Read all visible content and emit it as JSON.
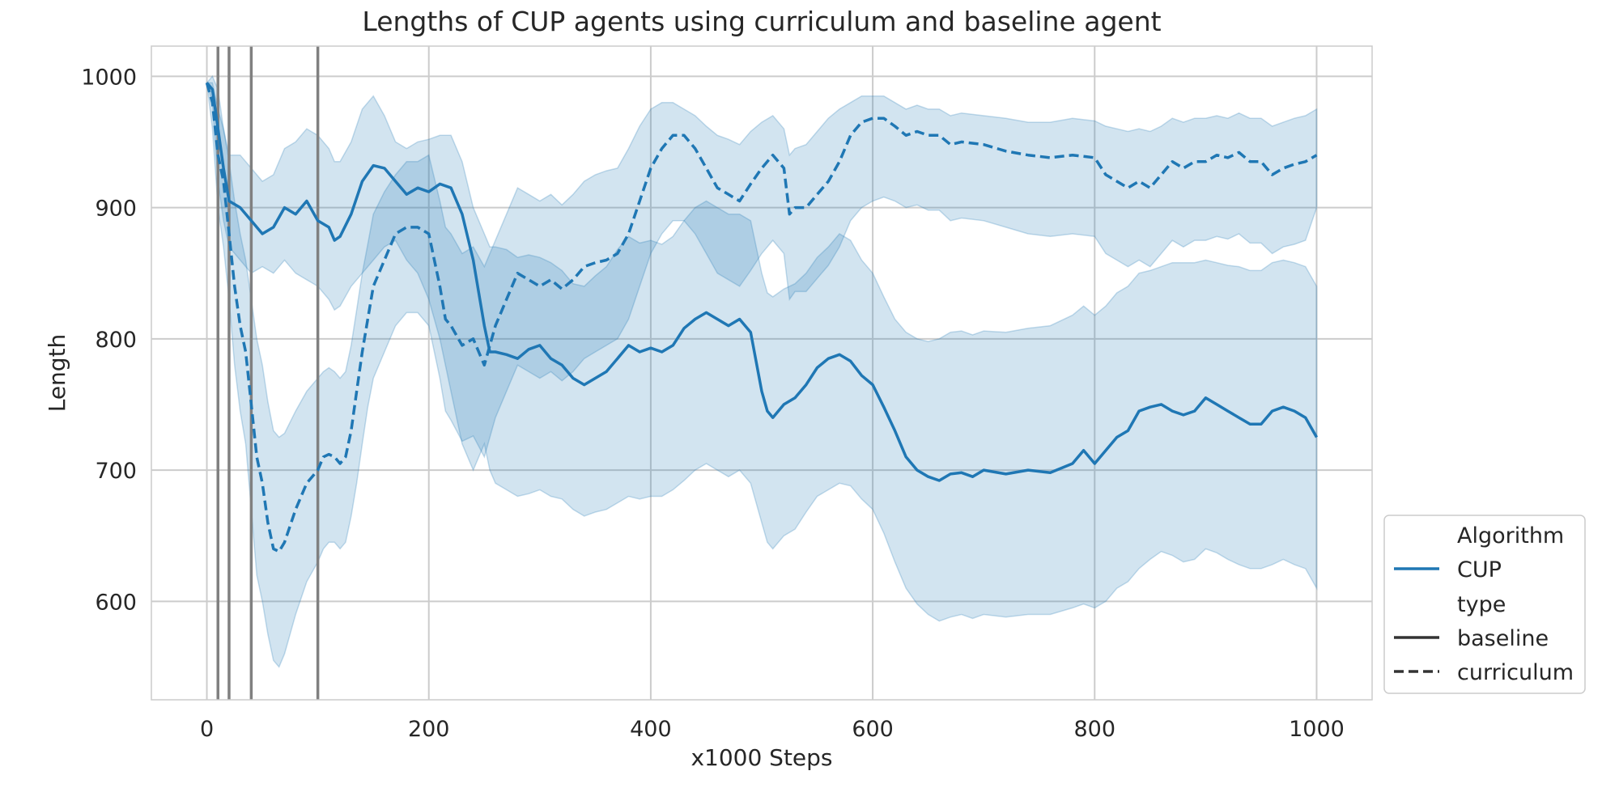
{
  "chart_data": {
    "type": "line",
    "title": "Lengths of CUP agents using curriculum and baseline agent",
    "xlabel": "x1000 Steps",
    "ylabel": "Length",
    "xlim": [
      -50,
      1050
    ],
    "ylim": [
      525,
      1023
    ],
    "x_ticks": [
      0,
      200,
      400,
      600,
      800,
      1000
    ],
    "x_tick_labels": [
      "0",
      "200",
      "400",
      "600",
      "800",
      "1000"
    ],
    "y_ticks": [
      600,
      700,
      800,
      900,
      1000
    ],
    "y_tick_labels": [
      "600",
      "700",
      "800",
      "900",
      "1000"
    ],
    "grid": true,
    "color": "#1f77b4",
    "vertical_markers": [
      10,
      20,
      40,
      100
    ],
    "legend": {
      "placement": "bottom-right",
      "hue_title": "Algorithm",
      "hue_entries": [
        "CUP"
      ],
      "style_title": "type",
      "style_entries": [
        "baseline",
        "curriculum"
      ]
    },
    "series": [
      {
        "name": "baseline",
        "style": "solid",
        "x": [
          0,
          5,
          10,
          15,
          20,
          30,
          40,
          50,
          60,
          70,
          80,
          90,
          100,
          110,
          115,
          120,
          130,
          140,
          150,
          160,
          170,
          180,
          190,
          200,
          210,
          220,
          230,
          240,
          250,
          255,
          260,
          270,
          280,
          290,
          300,
          310,
          320,
          330,
          340,
          350,
          360,
          370,
          380,
          390,
          400,
          410,
          420,
          430,
          440,
          450,
          460,
          470,
          480,
          490,
          500,
          505,
          510,
          520,
          530,
          540,
          550,
          560,
          570,
          580,
          590,
          600,
          610,
          620,
          630,
          640,
          650,
          660,
          670,
          680,
          690,
          700,
          720,
          740,
          760,
          780,
          790,
          800,
          810,
          820,
          830,
          840,
          850,
          860,
          870,
          880,
          890,
          900,
          910,
          920,
          930,
          940,
          950,
          960,
          970,
          980,
          990,
          1000
        ],
        "y": [
          995,
          990,
          960,
          930,
          905,
          900,
          890,
          880,
          885,
          900,
          895,
          905,
          890,
          885,
          875,
          878,
          895,
          920,
          932,
          930,
          920,
          910,
          915,
          912,
          918,
          915,
          895,
          860,
          810,
          790,
          790,
          788,
          785,
          792,
          795,
          785,
          780,
          770,
          765,
          770,
          775,
          785,
          795,
          790,
          793,
          790,
          795,
          808,
          815,
          820,
          815,
          810,
          815,
          805,
          760,
          745,
          740,
          750,
          755,
          765,
          778,
          785,
          788,
          783,
          772,
          765,
          748,
          730,
          710,
          700,
          695,
          692,
          697,
          698,
          695,
          700,
          697,
          700,
          698,
          705,
          715,
          705,
          715,
          725,
          730,
          745,
          748,
          750,
          745,
          742,
          745,
          755,
          750,
          745,
          740,
          735,
          735,
          745,
          748,
          745,
          740,
          725
        ],
        "lower": [
          995,
          980,
          920,
          890,
          870,
          860,
          850,
          855,
          850,
          860,
          850,
          845,
          840,
          830,
          822,
          825,
          840,
          850,
          860,
          870,
          875,
          860,
          850,
          830,
          800,
          760,
          720,
          700,
          720,
          700,
          690,
          685,
          680,
          682,
          685,
          680,
          678,
          670,
          665,
          668,
          670,
          675,
          680,
          678,
          680,
          680,
          685,
          692,
          700,
          705,
          700,
          695,
          700,
          690,
          660,
          645,
          640,
          650,
          655,
          668,
          680,
          685,
          690,
          688,
          678,
          670,
          652,
          630,
          610,
          598,
          590,
          585,
          588,
          590,
          587,
          590,
          588,
          590,
          590,
          595,
          598,
          595,
          600,
          610,
          615,
          625,
          632,
          638,
          635,
          630,
          632,
          640,
          637,
          632,
          628,
          625,
          625,
          628,
          632,
          628,
          625,
          610
        ],
        "upper": [
          995,
          1000,
          990,
          960,
          940,
          940,
          930,
          920,
          925,
          945,
          950,
          960,
          955,
          945,
          935,
          935,
          950,
          975,
          985,
          970,
          950,
          945,
          950,
          952,
          955,
          955,
          935,
          900,
          880,
          870,
          870,
          868,
          862,
          864,
          862,
          858,
          852,
          842,
          840,
          848,
          855,
          868,
          878,
          873,
          875,
          872,
          878,
          890,
          900,
          905,
          900,
          895,
          895,
          890,
          850,
          835,
          832,
          838,
          842,
          850,
          862,
          870,
          880,
          875,
          860,
          850,
          832,
          815,
          805,
          800,
          798,
          800,
          805,
          806,
          803,
          806,
          805,
          808,
          810,
          818,
          825,
          818,
          825,
          835,
          840,
          850,
          852,
          855,
          858,
          858,
          858,
          860,
          858,
          856,
          855,
          852,
          852,
          858,
          860,
          858,
          855,
          840
        ]
      },
      {
        "name": "curriculum",
        "style": "dashed",
        "x": [
          0,
          5,
          10,
          15,
          20,
          25,
          30,
          35,
          40,
          45,
          50,
          55,
          60,
          65,
          70,
          80,
          90,
          100,
          105,
          110,
          115,
          120,
          125,
          130,
          135,
          140,
          145,
          150,
          160,
          170,
          180,
          190,
          200,
          210,
          215,
          220,
          230,
          240,
          250,
          260,
          270,
          280,
          290,
          300,
          310,
          320,
          330,
          340,
          350,
          360,
          370,
          380,
          390,
          400,
          410,
          420,
          430,
          440,
          450,
          460,
          470,
          480,
          490,
          500,
          510,
          520,
          525,
          530,
          540,
          550,
          560,
          570,
          580,
          590,
          600,
          610,
          620,
          630,
          640,
          650,
          660,
          670,
          680,
          700,
          720,
          740,
          760,
          780,
          800,
          810,
          820,
          830,
          840,
          850,
          860,
          870,
          880,
          890,
          900,
          910,
          920,
          930,
          940,
          950,
          960,
          970,
          980,
          990,
          1000
        ],
        "y": [
          995,
          980,
          940,
          920,
          880,
          840,
          810,
          790,
          750,
          710,
          690,
          660,
          640,
          638,
          645,
          670,
          690,
          700,
          710,
          712,
          710,
          705,
          710,
          730,
          760,
          790,
          815,
          840,
          860,
          880,
          885,
          885,
          880,
          840,
          815,
          810,
          795,
          800,
          780,
          810,
          830,
          850,
          845,
          840,
          845,
          838,
          845,
          855,
          858,
          860,
          865,
          880,
          905,
          930,
          945,
          955,
          955,
          945,
          930,
          915,
          910,
          905,
          918,
          930,
          940,
          930,
          895,
          900,
          900,
          910,
          920,
          935,
          955,
          965,
          968,
          968,
          962,
          955,
          958,
          955,
          955,
          948,
          950,
          948,
          943,
          940,
          938,
          940,
          938,
          925,
          920,
          915,
          920,
          915,
          925,
          935,
          930,
          935,
          935,
          940,
          938,
          942,
          935,
          935,
          925,
          930,
          933,
          935,
          940
        ],
        "lower": [
          995,
          960,
          900,
          870,
          830,
          780,
          745,
          720,
          670,
          620,
          600,
          575,
          555,
          550,
          560,
          590,
          615,
          630,
          640,
          645,
          645,
          640,
          645,
          665,
          690,
          720,
          748,
          770,
          790,
          810,
          820,
          820,
          810,
          770,
          745,
          738,
          722,
          726,
          710,
          740,
          760,
          780,
          775,
          770,
          775,
          768,
          775,
          785,
          790,
          795,
          800,
          815,
          840,
          865,
          880,
          890,
          890,
          880,
          865,
          850,
          845,
          840,
          852,
          865,
          875,
          865,
          830,
          836,
          836,
          846,
          856,
          870,
          890,
          900,
          905,
          908,
          905,
          900,
          902,
          898,
          898,
          890,
          892,
          890,
          885,
          880,
          878,
          880,
          878,
          865,
          860,
          855,
          860,
          855,
          865,
          875,
          870,
          875,
          875,
          878,
          876,
          880,
          873,
          873,
          865,
          870,
          872,
          875,
          900
        ],
        "upper": [
          995,
          995,
          975,
          960,
          935,
          905,
          880,
          860,
          830,
          800,
          780,
          752,
          730,
          725,
          728,
          745,
          760,
          770,
          775,
          778,
          775,
          770,
          775,
          795,
          822,
          850,
          872,
          895,
          912,
          925,
          935,
          935,
          940,
          905,
          885,
          880,
          865,
          870,
          855,
          875,
          895,
          915,
          910,
          905,
          910,
          902,
          910,
          920,
          925,
          928,
          930,
          945,
          962,
          975,
          980,
          980,
          975,
          970,
          962,
          955,
          952,
          948,
          958,
          965,
          970,
          960,
          940,
          945,
          948,
          958,
          968,
          975,
          980,
          985,
          985,
          985,
          980,
          975,
          978,
          975,
          975,
          970,
          972,
          970,
          968,
          965,
          965,
          968,
          966,
          962,
          960,
          958,
          960,
          958,
          962,
          968,
          965,
          968,
          968,
          970,
          968,
          972,
          968,
          968,
          962,
          965,
          968,
          970,
          975
        ]
      }
    ]
  }
}
